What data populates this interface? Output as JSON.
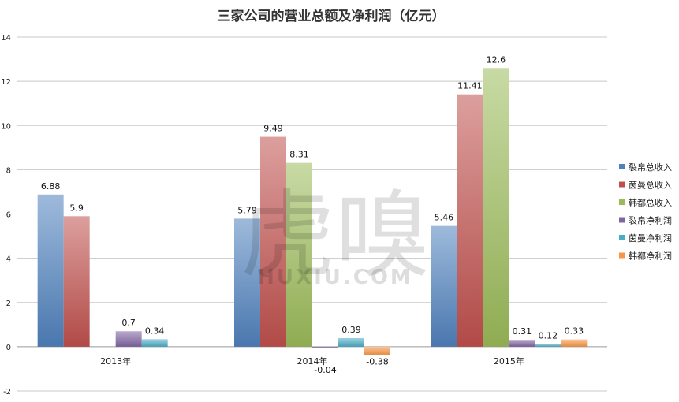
{
  "chart_data": {
    "type": "bar",
    "title": "三家公司的营业总额及净利润（亿元）",
    "categories": [
      "2013年",
      "2014年",
      "2015年"
    ],
    "ylim": [
      -2,
      14
    ],
    "yticks": [
      -2,
      0,
      2,
      4,
      6,
      8,
      10,
      12,
      14
    ],
    "grid": true,
    "legend_position": "right",
    "series": [
      {
        "name": "裂帛总收入",
        "color": "#4f81bd",
        "values": [
          6.88,
          5.79,
          5.46
        ]
      },
      {
        "name": "茵曼总收入",
        "color": "#c0504d",
        "values": [
          5.9,
          9.49,
          11.41
        ]
      },
      {
        "name": "韩都总收入",
        "color": "#9bbb59",
        "values": [
          null,
          8.31,
          12.6
        ]
      },
      {
        "name": "裂帛净利润",
        "color": "#8064a2",
        "values": [
          0.7,
          -0.04,
          0.31
        ]
      },
      {
        "name": "茵曼净利润",
        "color": "#4bacc6",
        "values": [
          0.34,
          0.39,
          0.12
        ]
      },
      {
        "name": "韩都净利润",
        "color": "#f79646",
        "values": [
          null,
          -0.38,
          0.33
        ]
      }
    ],
    "data_labels": [
      [
        "6.88",
        "5.9",
        "",
        "0.7",
        "0.34",
        ""
      ],
      [
        "5.79",
        "9.49",
        "8.31",
        "-0.04",
        "0.39",
        "-0.38"
      ],
      [
        "5.46",
        "11.41",
        "12.6",
        "0.31",
        "0.12",
        "0.33"
      ]
    ]
  },
  "watermark": {
    "logo_glyphs": "虎嗅",
    "site": "HUXIU.COM"
  }
}
